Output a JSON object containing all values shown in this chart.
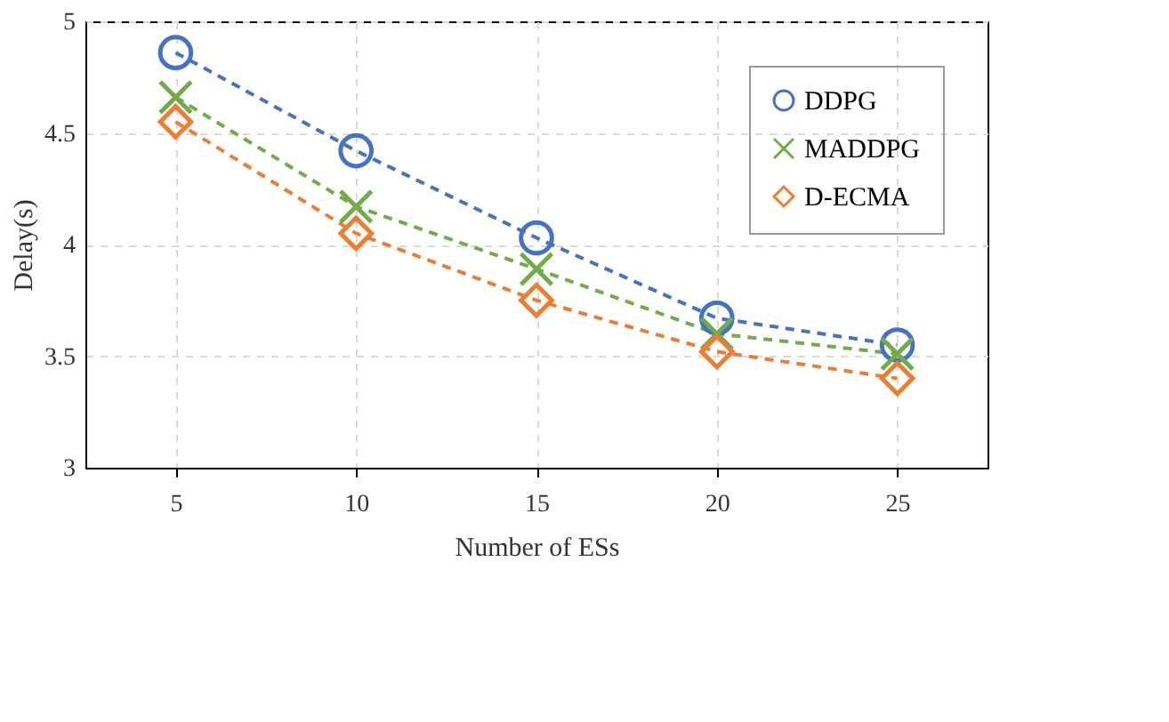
{
  "chart_data": {
    "type": "line",
    "xlabel": "Number of ESs",
    "ylabel": "Delay(s)",
    "categories": [
      "5",
      "10",
      "15",
      "20",
      "25"
    ],
    "series": [
      {
        "name": "DDPG",
        "color": "#4472c4",
        "marker": "circle",
        "values": [
          4.86,
          4.42,
          4.03,
          3.67,
          3.55
        ]
      },
      {
        "name": "MADDPG",
        "color": "#70ad47",
        "marker": "cross",
        "values": [
          4.66,
          4.17,
          3.89,
          3.6,
          3.51
        ]
      },
      {
        "name": "D-ECMA",
        "color": "#ed7d31",
        "marker": "diamond",
        "values": [
          4.55,
          4.05,
          3.75,
          3.52,
          3.4
        ]
      }
    ],
    "ylim": [
      3,
      5
    ],
    "yticks": [
      3,
      3.5,
      4,
      4.5,
      5
    ],
    "grid": true,
    "legend": "top right",
    "line_style": "dashed"
  }
}
